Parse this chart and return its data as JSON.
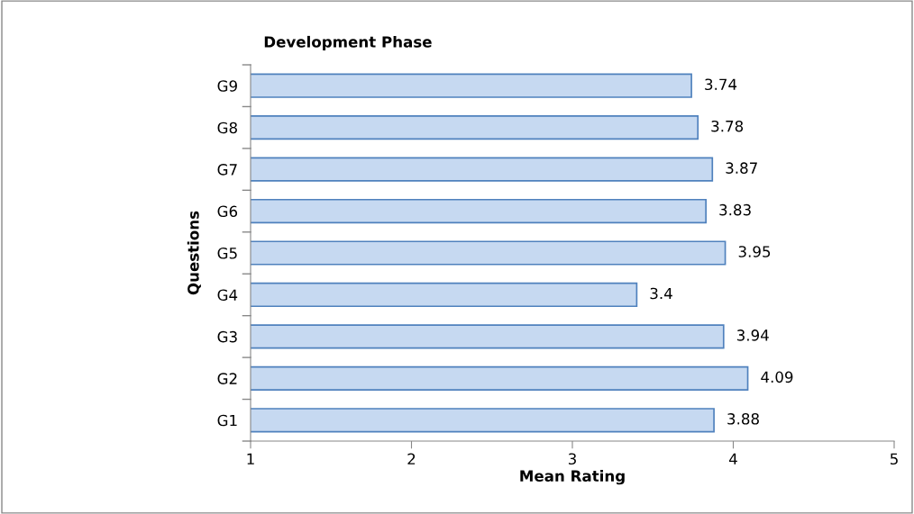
{
  "chart_data": {
    "type": "bar",
    "orientation": "horizontal",
    "title": "Development Phase",
    "xlabel": "Mean Rating",
    "ylabel": "Questions",
    "categories": [
      "G9",
      "G8",
      "G7",
      "G6",
      "G5",
      "G4",
      "G3",
      "G2",
      "G1"
    ],
    "values": [
      3.74,
      3.78,
      3.87,
      3.83,
      3.95,
      3.4,
      3.94,
      4.09,
      3.88
    ],
    "color": "#c6d9f1",
    "xlim": [
      1,
      5
    ],
    "xticks": [
      1,
      2,
      3,
      4,
      5
    ],
    "grid": false,
    "data_labels": true
  }
}
